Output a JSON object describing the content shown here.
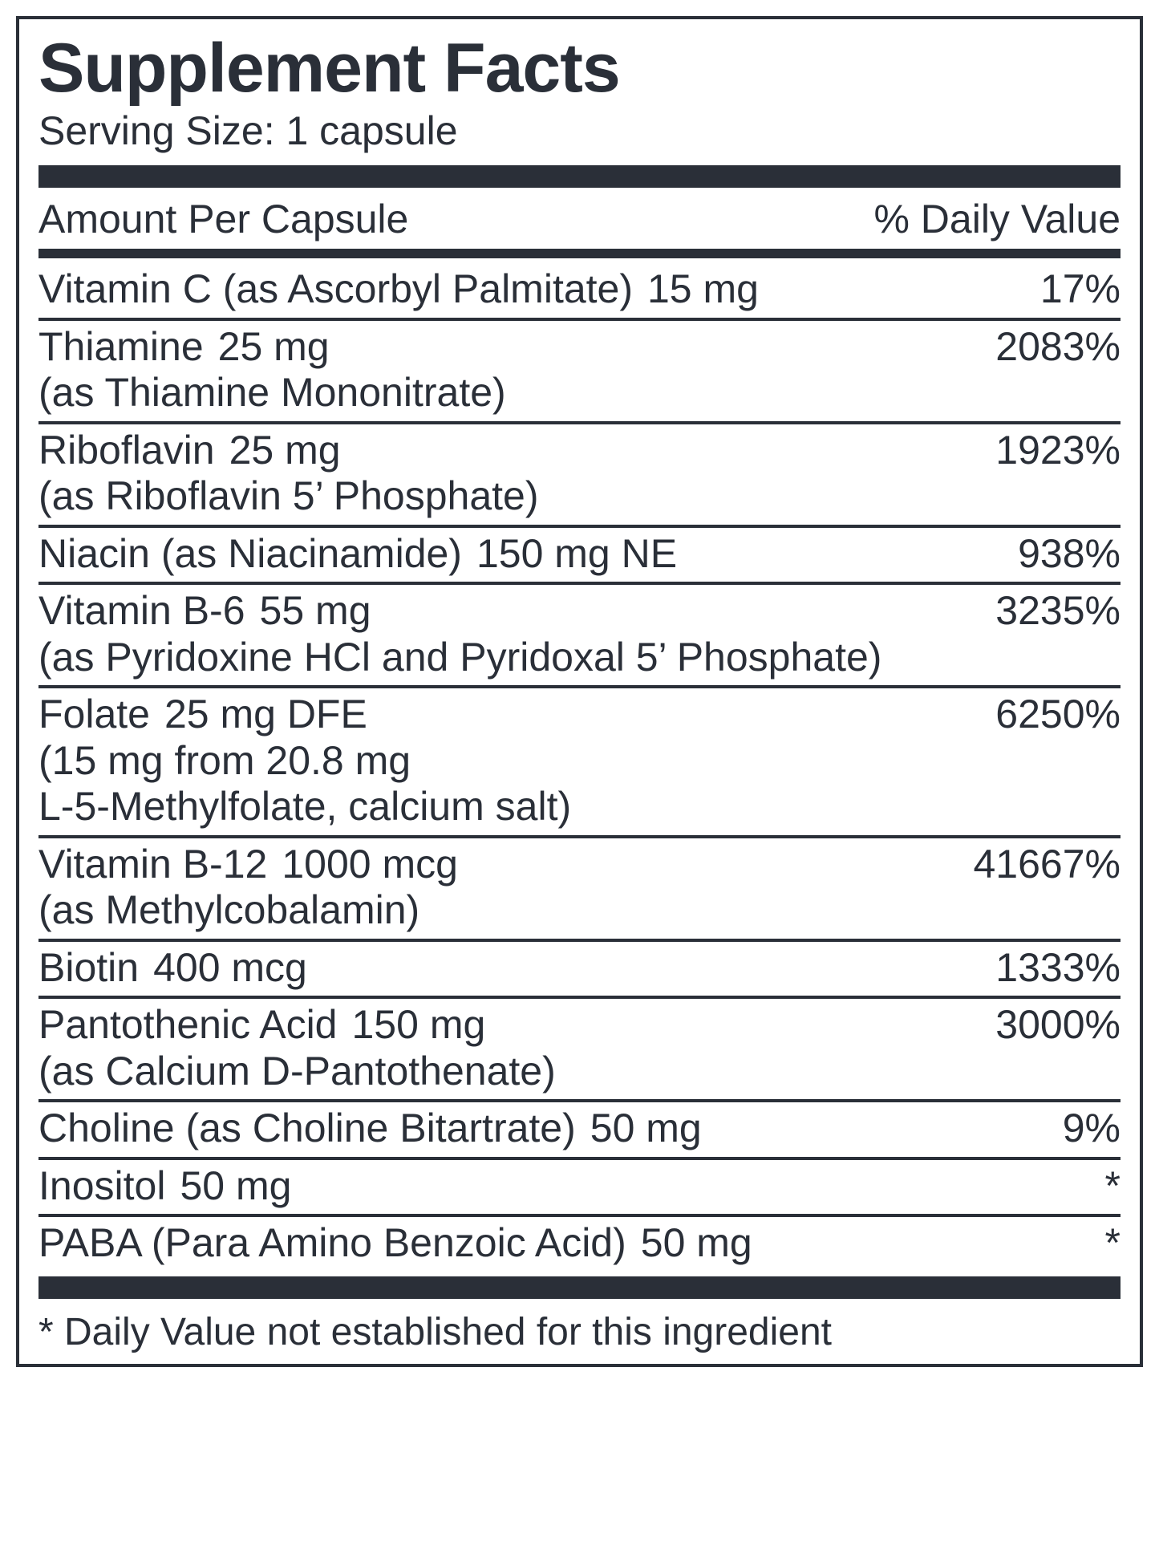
{
  "panel": {
    "title": "Supplement Facts",
    "serving": "Serving Size: 1 capsule",
    "header_left": "Amount Per Capsule",
    "header_right": "% Daily Value",
    "footnote": "* Daily Value not established for this ingredient",
    "colors": {
      "text": "#2a2f38",
      "border": "#2a2f38",
      "background": "#ffffff"
    },
    "fontsizes": {
      "title": 86,
      "serving": 50,
      "row": 50,
      "footnote": 48
    },
    "rows": [
      {
        "name": "Vitamin C (as Ascorbyl Palmitate)",
        "amount": "15 mg",
        "dv": "17%"
      },
      {
        "name": "Thiamine",
        "sub": "(as Thiamine Mononitrate)",
        "amount": "25 mg",
        "dv": "2083%"
      },
      {
        "name": "Riboflavin",
        "sub": "(as Riboflavin 5’ Phosphate)",
        "amount": "25 mg",
        "dv": "1923%"
      },
      {
        "name": "Niacin (as Niacinamide)",
        "amount": "150 mg NE",
        "dv": "938%"
      },
      {
        "name": "Vitamin B-6",
        "sub": "(as Pyridoxine HCl and Pyridoxal 5’ Phosphate)",
        "amount": "55 mg",
        "dv": "3235%"
      },
      {
        "name": "Folate",
        "sub": "(15 mg from 20.8 mg",
        "sub2": "L-5-Methylfolate, calcium salt)",
        "amount": "25 mg DFE",
        "dv": "6250%"
      },
      {
        "name": "Vitamin B-12",
        "sub": "(as Methylcobalamin)",
        "amount": "1000 mcg",
        "dv": "41667%"
      },
      {
        "name": "Biotin",
        "amount": "400 mcg",
        "dv": "1333%"
      },
      {
        "name": "Pantothenic Acid",
        "sub": "(as Calcium D-Pantothenate)",
        "amount": "150 mg",
        "dv": "3000%"
      },
      {
        "name": "Choline (as Choline Bitartrate)",
        "amount": "50 mg",
        "dv": "9%"
      },
      {
        "name": "Inositol",
        "amount": "50 mg",
        "dv": "*"
      },
      {
        "name": "PABA (Para Amino Benzoic Acid)",
        "amount": "50 mg",
        "dv": "*"
      }
    ]
  }
}
